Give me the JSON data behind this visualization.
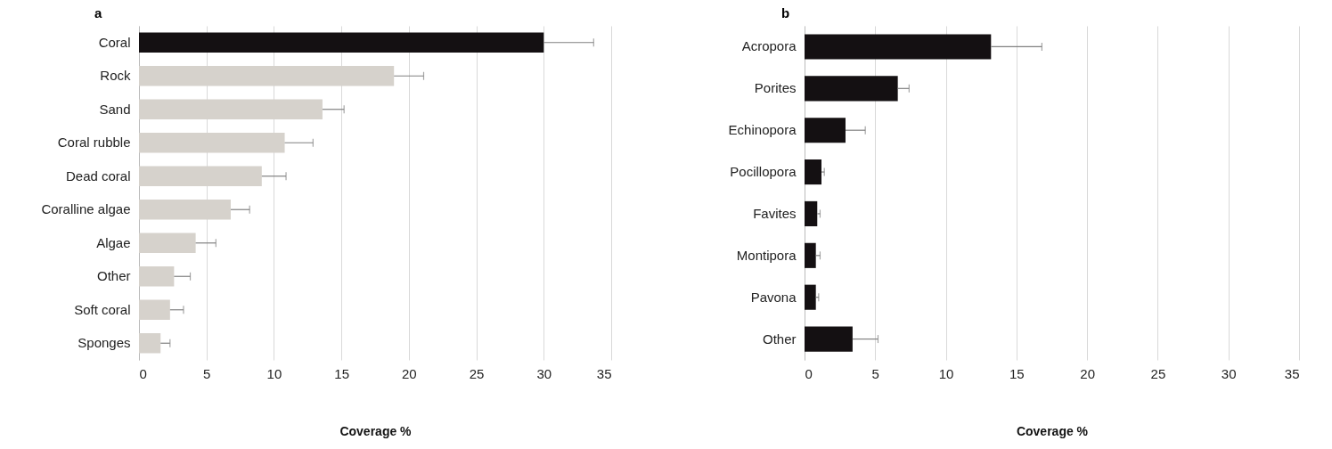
{
  "chart_data": [
    {
      "type": "bar",
      "title": "a",
      "orientation": "horizontal",
      "xlabel": "Coverage %",
      "categories": [
        "Coral",
        "Rock",
        "Sand",
        "Coral rubble",
        "Dead coral",
        "Coralline algae",
        "Algae",
        "Other",
        "Soft coral",
        "Sponges"
      ],
      "values": [
        30,
        18.9,
        13.6,
        10.8,
        9.1,
        6.8,
        4.2,
        2.6,
        2.3,
        1.6
      ],
      "errors": [
        [
          30,
          33.7
        ],
        [
          18.9,
          21.1
        ],
        [
          13.6,
          15.2
        ],
        [
          10.8,
          12.9
        ],
        [
          9.1,
          10.9
        ],
        [
          6.8,
          8.2
        ],
        [
          4.2,
          5.7
        ],
        [
          2.6,
          3.8
        ],
        [
          2.3,
          3.3
        ],
        [
          1.6,
          2.3
        ]
      ],
      "colors": [
        "#141012",
        "#d6d2cc",
        "#d6d2cc",
        "#d6d2cc",
        "#d6d2cc",
        "#d6d2cc",
        "#d6d2cc",
        "#d6d2cc",
        "#d6d2cc",
        "#d6d2cc"
      ],
      "xlim": [
        0,
        35
      ],
      "xticks": [
        0,
        5,
        10,
        15,
        20,
        25,
        30,
        35
      ],
      "grid": "x"
    },
    {
      "type": "bar",
      "title": "b",
      "orientation": "horizontal",
      "xlabel": "Coverage %",
      "categories": [
        "Acropora",
        "Porites",
        "Echinopora",
        "Pocillopora",
        "Favites",
        "Montipora",
        "Pavona",
        "Other"
      ],
      "values": [
        13.2,
        6.6,
        2.9,
        1.2,
        0.9,
        0.8,
        0.8,
        3.4
      ],
      "errors": [
        [
          13.2,
          16.8
        ],
        [
          6.6,
          7.4
        ],
        [
          2.9,
          4.3
        ],
        [
          1.2,
          1.4
        ],
        [
          0.9,
          1.1
        ],
        [
          0.8,
          1.1
        ],
        [
          0.8,
          1.0
        ],
        [
          3.4,
          5.2
        ]
      ],
      "colors": [
        "#141012",
        "#141012",
        "#141012",
        "#141012",
        "#141012",
        "#141012",
        "#141012",
        "#141012"
      ],
      "xlim": [
        0,
        35
      ],
      "xticks": [
        0,
        5,
        10,
        15,
        20,
        25,
        30,
        35
      ],
      "grid": "x"
    }
  ]
}
